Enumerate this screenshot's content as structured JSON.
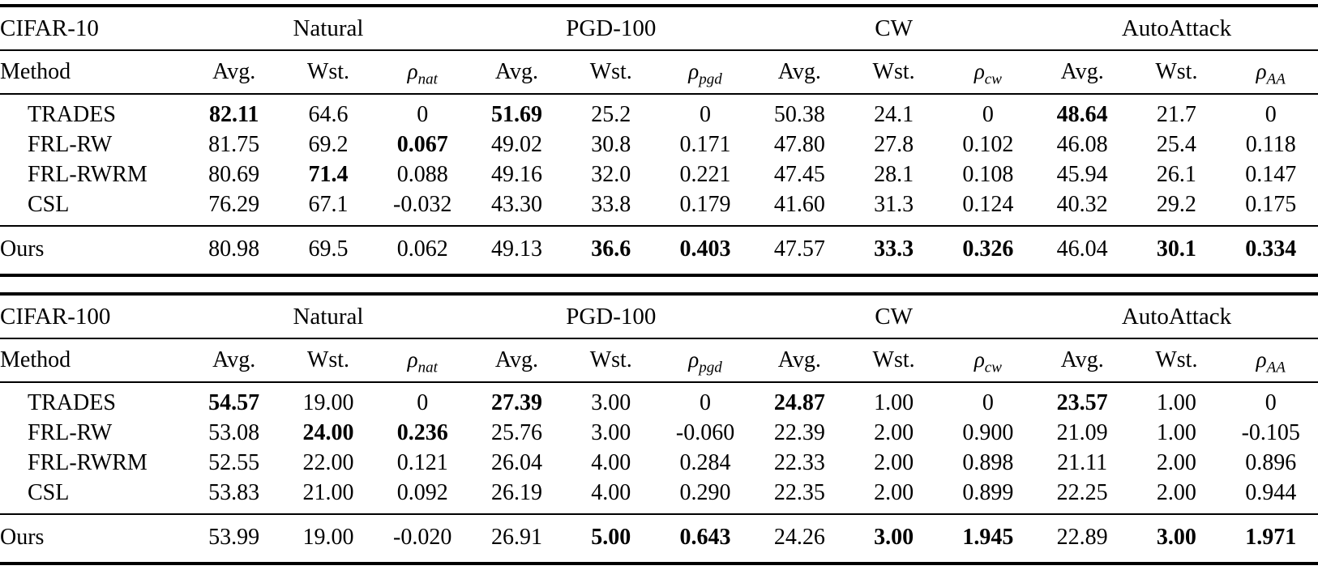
{
  "labels": {
    "avg": "Avg.",
    "wst": "Wst.",
    "rho": "ρ",
    "method": "Method"
  },
  "rho_subs": [
    "nat",
    "pgd",
    "cw",
    "AA"
  ],
  "tables": [
    {
      "dataset": "CIFAR-10",
      "groups": [
        "Natural",
        "PGD-100",
        "CW",
        "AutoAttack"
      ],
      "rows": [
        {
          "method": "TRADES",
          "values": [
            "82.11",
            "64.6",
            "0",
            "51.69",
            "25.2",
            "0",
            "50.38",
            "24.1",
            "0",
            "48.64",
            "21.7",
            "0"
          ],
          "bold": [
            0,
            3,
            9
          ]
        },
        {
          "method": "FRL-RW",
          "values": [
            "81.75",
            "69.2",
            "0.067",
            "49.02",
            "30.8",
            "0.171",
            "47.80",
            "27.8",
            "0.102",
            "46.08",
            "25.4",
            "0.118"
          ],
          "bold": [
            2
          ]
        },
        {
          "method": "FRL-RWRM",
          "values": [
            "80.69",
            "71.4",
            "0.088",
            "49.16",
            "32.0",
            "0.221",
            "47.45",
            "28.1",
            "0.108",
            "45.94",
            "26.1",
            "0.147"
          ],
          "bold": [
            1
          ]
        },
        {
          "method": "CSL",
          "values": [
            "76.29",
            "67.1",
            "-0.032",
            "43.30",
            "33.8",
            "0.179",
            "41.60",
            "31.3",
            "0.124",
            "40.32",
            "29.2",
            "0.175"
          ],
          "bold": []
        }
      ],
      "ours": {
        "method": "Ours",
        "values": [
          "80.98",
          "69.5",
          "0.062",
          "49.13",
          "36.6",
          "0.403",
          "47.57",
          "33.3",
          "0.326",
          "46.04",
          "30.1",
          "0.334"
        ],
        "bold": [
          4,
          5,
          7,
          8,
          10,
          11
        ]
      }
    },
    {
      "dataset": "CIFAR-100",
      "groups": [
        "Natural",
        "PGD-100",
        "CW",
        "AutoAttack"
      ],
      "rows": [
        {
          "method": "TRADES",
          "values": [
            "54.57",
            "19.00",
            "0",
            "27.39",
            "3.00",
            "0",
            "24.87",
            "1.00",
            "0",
            "23.57",
            "1.00",
            "0"
          ],
          "bold": [
            0,
            3,
            6,
            9
          ]
        },
        {
          "method": "FRL-RW",
          "values": [
            "53.08",
            "24.00",
            "0.236",
            "25.76",
            "3.00",
            "-0.060",
            "22.39",
            "2.00",
            "0.900",
            "21.09",
            "1.00",
            "-0.105"
          ],
          "bold": [
            1,
            2
          ]
        },
        {
          "method": "FRL-RWRM",
          "values": [
            "52.55",
            "22.00",
            "0.121",
            "26.04",
            "4.00",
            "0.284",
            "22.33",
            "2.00",
            "0.898",
            "21.11",
            "2.00",
            "0.896"
          ],
          "bold": []
        },
        {
          "method": "CSL",
          "values": [
            "53.83",
            "21.00",
            "0.092",
            "26.19",
            "4.00",
            "0.290",
            "22.35",
            "2.00",
            "0.899",
            "22.25",
            "2.00",
            "0.944"
          ],
          "bold": []
        }
      ],
      "ours": {
        "method": "Ours",
        "values": [
          "53.99",
          "19.00",
          "-0.020",
          "26.91",
          "5.00",
          "0.643",
          "24.26",
          "3.00",
          "1.945",
          "22.89",
          "3.00",
          "1.971"
        ],
        "bold": [
          4,
          5,
          7,
          8,
          10,
          11
        ]
      }
    }
  ]
}
